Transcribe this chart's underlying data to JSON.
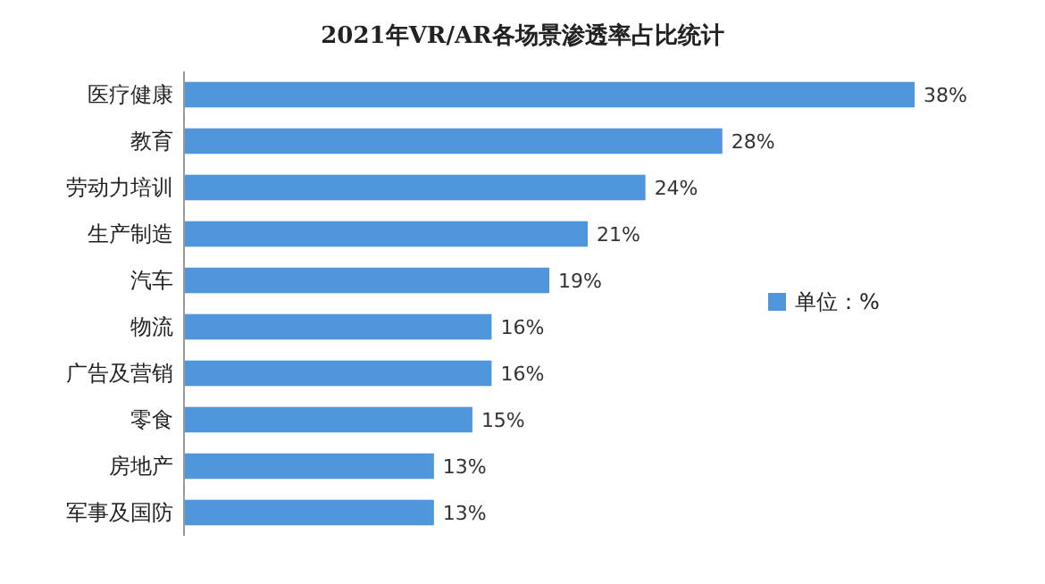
{
  "chart_data": {
    "type": "bar",
    "orientation": "horizontal",
    "title": "2021年VR/AR各场景渗透率占比统计",
    "categories": [
      "医疗健康",
      "教育",
      "劳动力培训",
      "生产制造",
      "汽车",
      "物流",
      "广告及营销",
      "零食",
      "房地产",
      "军事及国防"
    ],
    "series": [
      {
        "name": "单位：%",
        "color": "#4f96dc",
        "values": [
          38,
          28,
          24,
          21,
          19,
          16,
          16,
          15,
          13,
          13
        ],
        "value_labels": [
          "38%",
          "28%",
          "24%",
          "21%",
          "19%",
          "16%",
          "16%",
          "15%",
          "13%",
          "13%"
        ]
      }
    ],
    "legend": "right"
  }
}
